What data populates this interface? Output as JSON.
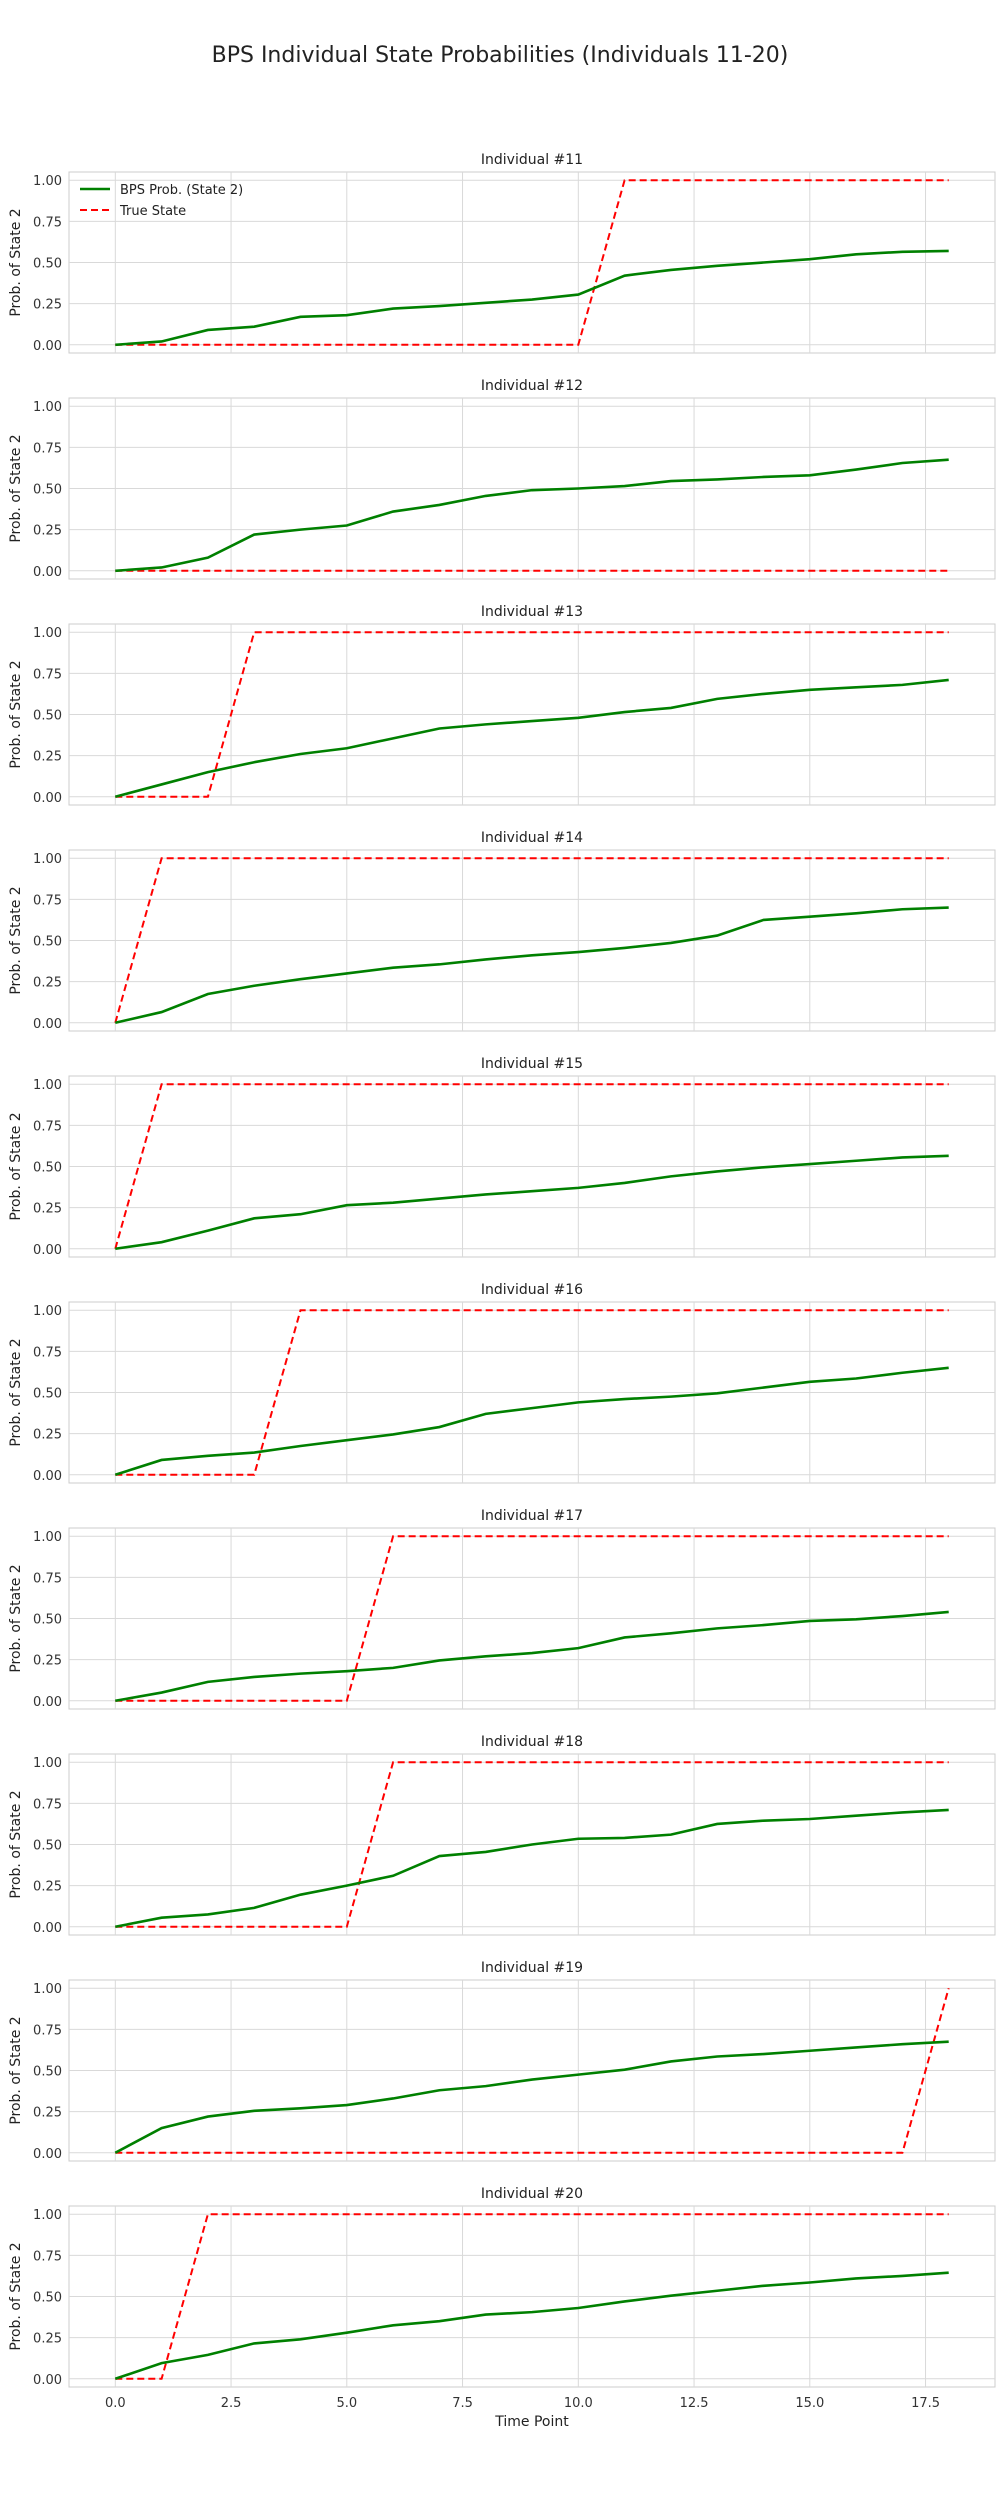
{
  "figure": {
    "suptitle": "BPS Individual State Probabilities (Individuals 11-20)"
  },
  "chart_data": {
    "type": "line",
    "xlabel": "Time Point",
    "ylabel": "Prob. of State 2",
    "xlim": [
      -1,
      19
    ],
    "ylim": [
      -0.05,
      1.05
    ],
    "xticks": [
      "0.0",
      "2.5",
      "5.0",
      "7.5",
      "10.0",
      "12.5",
      "15.0",
      "17.5"
    ],
    "yticks": [
      "0.00",
      "0.25",
      "0.50",
      "0.75",
      "1.00"
    ],
    "grid": true,
    "legend_placement": "top-left",
    "x": [
      0,
      1,
      2,
      3,
      4,
      5,
      6,
      7,
      8,
      9,
      10,
      11,
      12,
      13,
      14,
      15,
      16,
      17,
      18
    ],
    "series_styles": [
      {
        "name": "BPS Prob. (State 2)",
        "color": "#008000",
        "dash": "solid"
      },
      {
        "name": "True State",
        "color": "#ff0000",
        "dash": "dashed"
      }
    ],
    "panels": [
      {
        "title": "Individual #11",
        "prob": [
          0.0,
          0.02,
          0.09,
          0.11,
          0.17,
          0.18,
          0.22,
          0.235,
          0.255,
          0.275,
          0.305,
          0.42,
          0.455,
          0.48,
          0.5,
          0.52,
          0.55,
          0.565,
          0.57
        ],
        "true": [
          0,
          0,
          0,
          0,
          0,
          0,
          0,
          0,
          0,
          0,
          0,
          1,
          1,
          1,
          1,
          1,
          1,
          1,
          1
        ]
      },
      {
        "title": "Individual #12",
        "prob": [
          0.0,
          0.02,
          0.08,
          0.22,
          0.25,
          0.275,
          0.36,
          0.4,
          0.455,
          0.49,
          0.5,
          0.515,
          0.545,
          0.555,
          0.57,
          0.58,
          0.615,
          0.655,
          0.675
        ],
        "true": [
          0,
          0,
          0,
          0,
          0,
          0,
          0,
          0,
          0,
          0,
          0,
          0,
          0,
          0,
          0,
          0,
          0,
          0,
          0
        ]
      },
      {
        "title": "Individual #13",
        "prob": [
          0.0,
          0.075,
          0.15,
          0.21,
          0.26,
          0.295,
          0.355,
          0.415,
          0.44,
          0.46,
          0.48,
          0.515,
          0.54,
          0.595,
          0.625,
          0.65,
          0.665,
          0.68,
          0.71
        ],
        "true": [
          0,
          0,
          0,
          1,
          1,
          1,
          1,
          1,
          1,
          1,
          1,
          1,
          1,
          1,
          1,
          1,
          1,
          1,
          1
        ]
      },
      {
        "title": "Individual #14",
        "prob": [
          0.0,
          0.065,
          0.175,
          0.225,
          0.265,
          0.3,
          0.335,
          0.355,
          0.385,
          0.41,
          0.43,
          0.455,
          0.485,
          0.53,
          0.625,
          0.645,
          0.665,
          0.69,
          0.7
        ],
        "true": [
          0,
          1,
          1,
          1,
          1,
          1,
          1,
          1,
          1,
          1,
          1,
          1,
          1,
          1,
          1,
          1,
          1,
          1,
          1
        ]
      },
      {
        "title": "Individual #15",
        "prob": [
          0.0,
          0.04,
          0.11,
          0.185,
          0.21,
          0.265,
          0.28,
          0.305,
          0.33,
          0.35,
          0.37,
          0.4,
          0.44,
          0.47,
          0.495,
          0.515,
          0.535,
          0.555,
          0.565
        ],
        "true": [
          0,
          1,
          1,
          1,
          1,
          1,
          1,
          1,
          1,
          1,
          1,
          1,
          1,
          1,
          1,
          1,
          1,
          1,
          1
        ]
      },
      {
        "title": "Individual #16",
        "prob": [
          0.0,
          0.09,
          0.115,
          0.135,
          0.175,
          0.21,
          0.245,
          0.29,
          0.37,
          0.405,
          0.44,
          0.46,
          0.475,
          0.495,
          0.53,
          0.565,
          0.585,
          0.62,
          0.65
        ],
        "true": [
          0,
          0,
          0,
          0,
          1,
          1,
          1,
          1,
          1,
          1,
          1,
          1,
          1,
          1,
          1,
          1,
          1,
          1,
          1
        ]
      },
      {
        "title": "Individual #17",
        "prob": [
          0.0,
          0.05,
          0.115,
          0.145,
          0.165,
          0.18,
          0.2,
          0.245,
          0.27,
          0.29,
          0.32,
          0.385,
          0.41,
          0.44,
          0.46,
          0.485,
          0.495,
          0.515,
          0.54
        ],
        "true": [
          0,
          0,
          0,
          0,
          0,
          0,
          1,
          1,
          1,
          1,
          1,
          1,
          1,
          1,
          1,
          1,
          1,
          1,
          1
        ]
      },
      {
        "title": "Individual #18",
        "prob": [
          0.0,
          0.055,
          0.075,
          0.115,
          0.195,
          0.25,
          0.31,
          0.43,
          0.455,
          0.5,
          0.535,
          0.54,
          0.56,
          0.625,
          0.645,
          0.655,
          0.675,
          0.695,
          0.71
        ],
        "true": [
          0,
          0,
          0,
          0,
          0,
          0,
          1,
          1,
          1,
          1,
          1,
          1,
          1,
          1,
          1,
          1,
          1,
          1,
          1
        ]
      },
      {
        "title": "Individual #19",
        "prob": [
          0.0,
          0.15,
          0.22,
          0.255,
          0.27,
          0.29,
          0.33,
          0.38,
          0.405,
          0.445,
          0.475,
          0.505,
          0.555,
          0.585,
          0.6,
          0.62,
          0.64,
          0.66,
          0.675
        ],
        "true": [
          0,
          0,
          0,
          0,
          0,
          0,
          0,
          0,
          0,
          0,
          0,
          0,
          0,
          0,
          0,
          0,
          0,
          0,
          1
        ]
      },
      {
        "title": "Individual #20",
        "prob": [
          0.0,
          0.095,
          0.145,
          0.215,
          0.24,
          0.28,
          0.325,
          0.35,
          0.39,
          0.405,
          0.43,
          0.47,
          0.505,
          0.535,
          0.565,
          0.585,
          0.61,
          0.625,
          0.645
        ],
        "true": [
          0,
          0,
          1,
          1,
          1,
          1,
          1,
          1,
          1,
          1,
          1,
          1,
          1,
          1,
          1,
          1,
          1,
          1,
          1
        ]
      }
    ]
  }
}
